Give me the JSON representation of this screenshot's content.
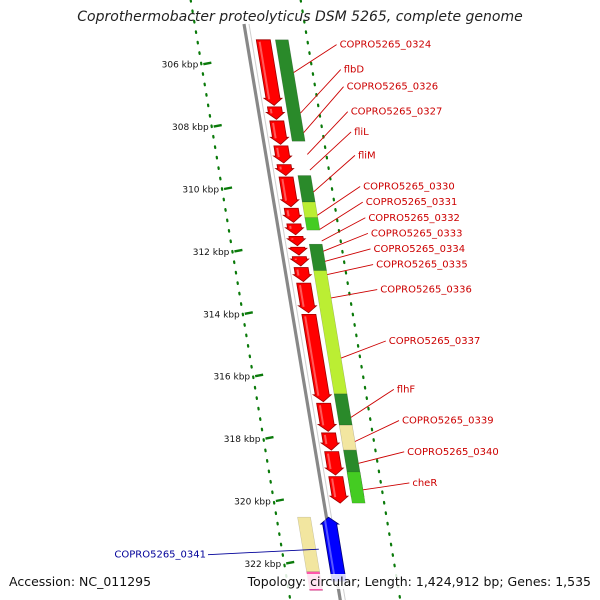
{
  "title": "Coprothermobacter proteolyticus DSM 5265, complete genome",
  "footer": {
    "accession": "Accession: NC_011295",
    "summary": "Topology: circular; Length: 1,424,912 bp; Genes: 1,535"
  },
  "colors": {
    "forward_gene": "#ff0000",
    "reverse_gene": "#0000ff",
    "pink_gene": "#ff55aa",
    "label_red": "#cc0000",
    "label_blue": "#000099",
    "backbone": "#888888",
    "tick": "#0a7a0a",
    "dark_green": "#2a8a2a",
    "green": "#44cc22",
    "light_green": "#bbee33",
    "khaki": "#f2e6a0"
  },
  "scale": {
    "unit": "kbp",
    "ticks": [
      {
        "kbp": 306,
        "label": "306 kbp"
      },
      {
        "kbp": 308,
        "label": "308 kbp"
      },
      {
        "kbp": 310,
        "label": "310 kbp"
      },
      {
        "kbp": 312,
        "label": "312 kbp"
      },
      {
        "kbp": 314,
        "label": "314 kbp"
      },
      {
        "kbp": 316,
        "label": "316 kbp"
      },
      {
        "kbp": 318,
        "label": "318 kbp"
      },
      {
        "kbp": 320,
        "label": "320 kbp"
      },
      {
        "kbp": 322,
        "label": "322 kbp"
      }
    ]
  },
  "genes": [
    {
      "name": "COPRO5265_0324",
      "strand": "forward",
      "start_kbp": 305.25,
      "end_kbp": 307.35,
      "label_kbp": 305.5
    },
    {
      "name": "flbD",
      "strand": "forward",
      "start_kbp": 307.4,
      "end_kbp": 307.8,
      "label_kbp": 306.3
    },
    {
      "name": "COPRO5265_0326",
      "strand": "forward",
      "start_kbp": 307.85,
      "end_kbp": 308.6,
      "label_kbp": 306.85
    },
    {
      "name": "COPRO5265_0327",
      "strand": "forward",
      "start_kbp": 308.65,
      "end_kbp": 309.2,
      "label_kbp": 307.65
    },
    {
      "name": "fliL",
      "strand": "forward",
      "start_kbp": 309.25,
      "end_kbp": 309.6,
      "label_kbp": 308.3
    },
    {
      "name": "fliM",
      "strand": "forward",
      "start_kbp": 309.65,
      "end_kbp": 310.6,
      "label_kbp": 309.05
    },
    {
      "name": "COPRO5265_0330",
      "strand": "forward",
      "start_kbp": 310.65,
      "end_kbp": 311.1,
      "label_kbp": 310.05
    },
    {
      "name": "COPRO5265_0331",
      "strand": "forward",
      "start_kbp": 311.15,
      "end_kbp": 311.5,
      "label_kbp": 310.55
    },
    {
      "name": "COPRO5265_0332",
      "strand": "forward",
      "start_kbp": 311.55,
      "end_kbp": 311.85,
      "label_kbp": 311.05
    },
    {
      "name": "COPRO5265_0333",
      "strand": "forward",
      "start_kbp": 311.9,
      "end_kbp": 312.15,
      "label_kbp": 311.55
    },
    {
      "name": "COPRO5265_0334",
      "strand": "forward",
      "start_kbp": 312.2,
      "end_kbp": 312.5,
      "label_kbp": 312.05
    },
    {
      "name": "COPRO5265_0335",
      "strand": "forward",
      "start_kbp": 312.55,
      "end_kbp": 313.0,
      "label_kbp": 312.55
    },
    {
      "name": "COPRO5265_0336",
      "strand": "forward",
      "start_kbp": 313.05,
      "end_kbp": 314.0,
      "label_kbp": 313.35
    },
    {
      "name": "COPRO5265_0337",
      "strand": "forward",
      "start_kbp": 314.05,
      "end_kbp": 316.85,
      "label_kbp": 315.0
    },
    {
      "name": "flhF",
      "strand": "forward",
      "start_kbp": 316.9,
      "end_kbp": 317.8,
      "label_kbp": 316.55
    },
    {
      "name": "COPRO5265_0339",
      "strand": "forward",
      "start_kbp": 317.85,
      "end_kbp": 318.4,
      "label_kbp": 317.55
    },
    {
      "name": "COPRO5265_0340",
      "strand": "forward",
      "start_kbp": 318.45,
      "end_kbp": 319.2,
      "label_kbp": 318.55
    },
    {
      "name": "cheR",
      "strand": "forward",
      "start_kbp": 319.25,
      "end_kbp": 320.1,
      "label_kbp": 319.55
    },
    {
      "name": "COPRO5265_0341",
      "strand": "reverse",
      "start_kbp": 320.55,
      "end_kbp": 322.6,
      "label_kbp": 321.85
    }
  ],
  "cog_bars": [
    {
      "start_kbp": 305.25,
      "end_kbp": 308.5,
      "color": "dark_green"
    },
    {
      "start_kbp": 309.6,
      "end_kbp": 310.45,
      "color": "dark_green"
    },
    {
      "start_kbp": 310.45,
      "end_kbp": 310.95,
      "color": "light_green"
    },
    {
      "start_kbp": 310.95,
      "end_kbp": 311.35,
      "color": "green"
    },
    {
      "start_kbp": 311.8,
      "end_kbp": 312.65,
      "color": "dark_green"
    },
    {
      "start_kbp": 312.65,
      "end_kbp": 316.6,
      "color": "light_green"
    },
    {
      "start_kbp": 316.6,
      "end_kbp": 317.6,
      "color": "dark_green"
    },
    {
      "start_kbp": 317.6,
      "end_kbp": 318.4,
      "color": "khaki"
    },
    {
      "start_kbp": 318.4,
      "end_kbp": 319.9,
      "color": "dark_green"
    },
    {
      "start_kbp": 319.1,
      "end_kbp": 320.1,
      "color": "green"
    }
  ],
  "reverse_cog_bars": [
    {
      "start_kbp": 320.55,
      "end_kbp": 322.3,
      "color": "khaki"
    },
    {
      "start_kbp": 322.3,
      "end_kbp": 322.9,
      "color": "pink_gene"
    }
  ]
}
